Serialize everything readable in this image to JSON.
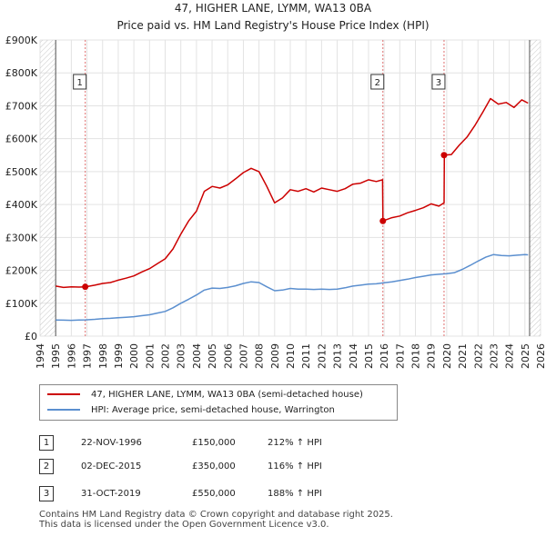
{
  "chart_data": {
    "type": "line",
    "title": "47, HIGHER LANE, LYMM, WA13 0BA",
    "subtitle": "Price paid vs. HM Land Registry's House Price Index (HPI)",
    "xlabel": "",
    "ylabel": "",
    "xlim": [
      1994,
      2026
    ],
    "ylim": [
      0,
      900000
    ],
    "x_ticks": [
      "1994",
      "1995",
      "1996",
      "1997",
      "1998",
      "1999",
      "2000",
      "2001",
      "2002",
      "2003",
      "2004",
      "2005",
      "2006",
      "2007",
      "2008",
      "2009",
      "2010",
      "2011",
      "2012",
      "2013",
      "2014",
      "2015",
      "2016",
      "2017",
      "2018",
      "2019",
      "2020",
      "2021",
      "2022",
      "2023",
      "2024",
      "2025",
      "2026"
    ],
    "y_ticks": [
      {
        "value": 0,
        "label": "£0"
      },
      {
        "value": 100000,
        "label": "£100K"
      },
      {
        "value": 200000,
        "label": "£200K"
      },
      {
        "value": 300000,
        "label": "£300K"
      },
      {
        "value": 400000,
        "label": "£400K"
      },
      {
        "value": 500000,
        "label": "£500K"
      },
      {
        "value": 600000,
        "label": "£600K"
      },
      {
        "value": 700000,
        "label": "£700K"
      },
      {
        "value": 800000,
        "label": "£800K"
      },
      {
        "value": 900000,
        "label": "£900K"
      }
    ],
    "grid": true,
    "data_start": 1995.0,
    "data_end": 2025.3,
    "series": [
      {
        "name": "47, HIGHER LANE, LYMM, WA13 0BA (semi-detached house)",
        "color": "#cc0000",
        "points": [
          [
            1995.0,
            152000
          ],
          [
            1995.5,
            148000
          ],
          [
            1996.0,
            150000
          ],
          [
            1996.5,
            149000
          ],
          [
            1996.9,
            150000
          ],
          [
            1997.5,
            155000
          ],
          [
            1998.0,
            160000
          ],
          [
            1998.5,
            163000
          ],
          [
            1999.0,
            170000
          ],
          [
            1999.5,
            176000
          ],
          [
            2000.0,
            183000
          ],
          [
            2000.5,
            195000
          ],
          [
            2001.0,
            205000
          ],
          [
            2001.5,
            220000
          ],
          [
            2002.0,
            235000
          ],
          [
            2002.5,
            265000
          ],
          [
            2003.0,
            310000
          ],
          [
            2003.5,
            350000
          ],
          [
            2004.0,
            380000
          ],
          [
            2004.5,
            440000
          ],
          [
            2005.0,
            455000
          ],
          [
            2005.5,
            450000
          ],
          [
            2006.0,
            460000
          ],
          [
            2006.5,
            478000
          ],
          [
            2007.0,
            497000
          ],
          [
            2007.5,
            510000
          ],
          [
            2008.0,
            500000
          ],
          [
            2008.5,
            455000
          ],
          [
            2009.0,
            405000
          ],
          [
            2009.5,
            420000
          ],
          [
            2010.0,
            445000
          ],
          [
            2010.5,
            440000
          ],
          [
            2011.0,
            448000
          ],
          [
            2011.5,
            438000
          ],
          [
            2012.0,
            450000
          ],
          [
            2012.5,
            445000
          ],
          [
            2013.0,
            440000
          ],
          [
            2013.5,
            448000
          ],
          [
            2014.0,
            462000
          ],
          [
            2014.5,
            465000
          ],
          [
            2015.0,
            475000
          ],
          [
            2015.5,
            470000
          ],
          [
            2015.9,
            475000
          ],
          [
            2015.92,
            350000
          ],
          [
            2016.5,
            360000
          ],
          [
            2017.0,
            365000
          ],
          [
            2017.5,
            375000
          ],
          [
            2018.0,
            382000
          ],
          [
            2018.5,
            390000
          ],
          [
            2019.0,
            402000
          ],
          [
            2019.5,
            395000
          ],
          [
            2019.83,
            405000
          ],
          [
            2019.85,
            550000
          ],
          [
            2020.3,
            552000
          ],
          [
            2020.8,
            580000
          ],
          [
            2021.3,
            605000
          ],
          [
            2021.8,
            640000
          ],
          [
            2022.3,
            680000
          ],
          [
            2022.8,
            722000
          ],
          [
            2023.3,
            705000
          ],
          [
            2023.8,
            710000
          ],
          [
            2024.3,
            695000
          ],
          [
            2024.8,
            718000
          ],
          [
            2025.2,
            708000
          ]
        ]
      },
      {
        "name": "HPI: Average price, semi-detached house, Warrington",
        "color": "#5b8fcf",
        "points": [
          [
            1995.0,
            49000
          ],
          [
            1995.5,
            48500
          ],
          [
            1996.0,
            48000
          ],
          [
            1996.5,
            49000
          ],
          [
            1996.9,
            49500
          ],
          [
            1997.5,
            51000
          ],
          [
            1998.0,
            53000
          ],
          [
            1998.5,
            54000
          ],
          [
            1999.0,
            56000
          ],
          [
            1999.5,
            57500
          ],
          [
            2000.0,
            59000
          ],
          [
            2000.5,
            62000
          ],
          [
            2001.0,
            65000
          ],
          [
            2001.5,
            70000
          ],
          [
            2002.0,
            75000
          ],
          [
            2002.5,
            86000
          ],
          [
            2003.0,
            100000
          ],
          [
            2003.5,
            112000
          ],
          [
            2004.0,
            125000
          ],
          [
            2004.5,
            140000
          ],
          [
            2005.0,
            146000
          ],
          [
            2005.5,
            145000
          ],
          [
            2006.0,
            148000
          ],
          [
            2006.5,
            153000
          ],
          [
            2007.0,
            160000
          ],
          [
            2007.5,
            165000
          ],
          [
            2008.0,
            163000
          ],
          [
            2008.5,
            150000
          ],
          [
            2009.0,
            138000
          ],
          [
            2009.5,
            140000
          ],
          [
            2010.0,
            145000
          ],
          [
            2010.5,
            143000
          ],
          [
            2011.0,
            143000
          ],
          [
            2011.5,
            142000
          ],
          [
            2012.0,
            143000
          ],
          [
            2012.5,
            142000
          ],
          [
            2013.0,
            143000
          ],
          [
            2013.5,
            147000
          ],
          [
            2014.0,
            152000
          ],
          [
            2014.5,
            155000
          ],
          [
            2015.0,
            158000
          ],
          [
            2015.5,
            159000
          ],
          [
            2016.0,
            162000
          ],
          [
            2016.5,
            165000
          ],
          [
            2017.0,
            169000
          ],
          [
            2017.5,
            173000
          ],
          [
            2018.0,
            178000
          ],
          [
            2018.5,
            182000
          ],
          [
            2019.0,
            186000
          ],
          [
            2019.5,
            188000
          ],
          [
            2020.0,
            190000
          ],
          [
            2020.5,
            193000
          ],
          [
            2021.0,
            203000
          ],
          [
            2021.5,
            215000
          ],
          [
            2022.0,
            228000
          ],
          [
            2022.5,
            240000
          ],
          [
            2023.0,
            248000
          ],
          [
            2023.5,
            245000
          ],
          [
            2024.0,
            244000
          ],
          [
            2024.5,
            246000
          ],
          [
            2025.0,
            248000
          ],
          [
            2025.2,
            247000
          ]
        ]
      }
    ],
    "sales": [
      {
        "n": "1",
        "x": 1996.89,
        "value": 150000
      },
      {
        "n": "2",
        "x": 2015.92,
        "value": 350000
      },
      {
        "n": "3",
        "x": 2019.83,
        "value": 550000
      }
    ]
  },
  "legend": [
    {
      "label": "47, HIGHER LANE, LYMM, WA13 0BA (semi-detached house)",
      "color": "#cc0000"
    },
    {
      "label": "HPI: Average price, semi-detached house, Warrington",
      "color": "#5b8fcf"
    }
  ],
  "sales_table": [
    {
      "n": "1",
      "date": "22-NOV-1996",
      "price": "£150,000",
      "hpi": "212% ↑ HPI"
    },
    {
      "n": "2",
      "date": "02-DEC-2015",
      "price": "£350,000",
      "hpi": "116% ↑ HPI"
    },
    {
      "n": "3",
      "date": "31-OCT-2019",
      "price": "£550,000",
      "hpi": "188% ↑ HPI"
    }
  ],
  "footer": {
    "line1": "Contains HM Land Registry data © Crown copyright and database right 2025.",
    "line2": "This data is licensed under the Open Government Licence v3.0."
  }
}
